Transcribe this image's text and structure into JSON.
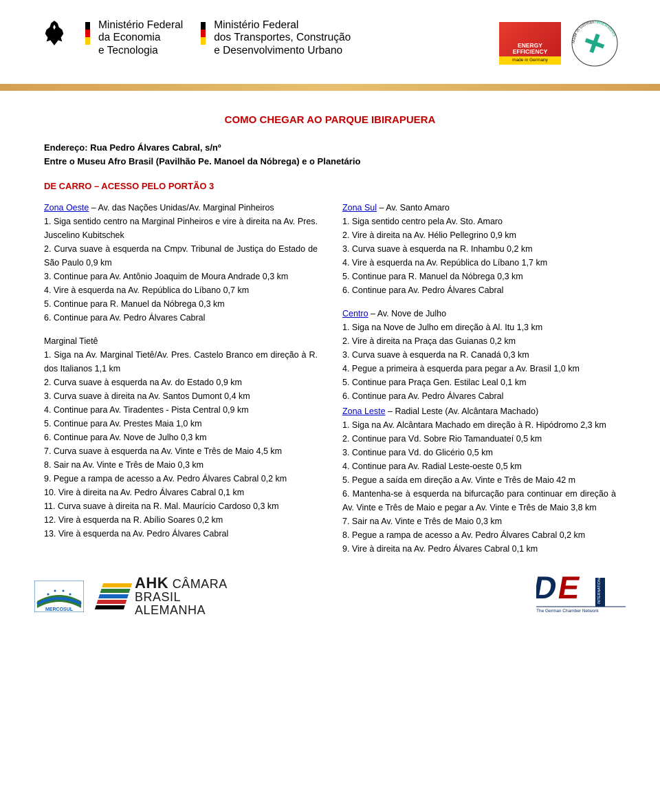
{
  "header": {
    "ministry1": {
      "line1": "Ministério Federal",
      "line2": "da Economia",
      "line3": "e Tecnologia"
    },
    "ministry2": {
      "line1": "Ministério Federal",
      "line2": "dos Transportes, Construção",
      "line3": "e Desenvolvimento Urbano"
    },
    "badge_ee": {
      "line1": "ENERGY",
      "line2": "EFFICIENCY",
      "sub": "made in Germany"
    },
    "badge_ren_top": "renewables",
    "badge_ren_bot": "Made in Germany"
  },
  "title": "COMO CHEGAR AO PARQUE IBIRAPUERA",
  "address": {
    "l1": "Endereço: Rua Pedro Álvares Cabral, s/nº",
    "l2": "Entre o Museu Afro Brasil (Pavilhão Pe. Manoel da Nóbrega) e o Planetário"
  },
  "section": "DE CARRO – ACESSO PELO PORTÃO 3",
  "colL": {
    "zone1_link": "Zona Oeste",
    "zone1_rest": " – Av. das Nações Unidas/Av. Marginal Pinheiros",
    "z1": [
      "1. Siga sentido centro na Marginal Pinheiros e vire à direita na Av. Pres. Juscelino Kubitschek",
      "2. Curva suave à esquerda na Cmpv. Tribunal de Justiça do Estado de São Paulo 0,9 km",
      "3. Continue para Av. Antônio Joaquim de Moura Andrade 0,3 km",
      "4. Vire à esquerda na Av. República do Líbano 0,7 km",
      "5. Continue para R. Manuel da Nóbrega 0,3 km",
      "6. Continue para Av. Pedro Álvares Cabral"
    ],
    "sub1_head": "Marginal Tietê",
    "sub1": [
      "1. Siga na Av. Marginal Tietê/Av. Pres. Castelo Branco em direção à R. dos Italianos 1,1 km",
      "2. Curva suave à esquerda na Av. do Estado 0,9 km",
      "3. Curva suave à direita na Av. Santos Dumont 0,4 km",
      "4. Continue para Av. Tiradentes - Pista Central 0,9 km",
      "5. Continue para Av. Prestes Maia 1,0 km",
      "6. Continue para Av. Nove de Julho 0,3 km",
      "7. Curva suave à esquerda na Av. Vinte e Três de Maio 4,5 km",
      "8. Sair na Av. Vinte e Três de Maio 0,3 km",
      "9. Pegue a rampa de acesso a Av. Pedro Álvares Cabral 0,2 km",
      "10. Vire à direita na Av. Pedro Álvares Cabral 0,1 km",
      "11. Curva suave à direita na R. Mal. Maurício Cardoso 0,3 km",
      "12. Vire à esquerda na R. Abílio Soares 0,2 km",
      "13. Vire à esquerda na Av. Pedro Álvares Cabral"
    ]
  },
  "colR": {
    "zone2_link": "Zona Sul",
    "zone2_rest": " – Av. Santo Amaro",
    "z2": [
      "1. Siga sentido centro pela Av. Sto. Amaro",
      "2. Vire à direita na Av. Hélio Pellegrino 0,9 km",
      "3. Curva suave à esquerda na R. Inhambu 0,2 km",
      "4. Vire à esquerda na Av. República do Líbano 1,7 km",
      "5. Continue para R. Manuel da Nóbrega 0,3 km",
      "6. Continue para Av. Pedro Álvares Cabral"
    ],
    "zone3_link": "Centro",
    "zone3_rest": " – Av. Nove de Julho",
    "z3": [
      "1. Siga na Nove de Julho em direção à Al. Itu 1,3 km",
      "2. Vire à direita na Praça das Guianas 0,2 km",
      "3. Curva suave à esquerda na R. Canadá 0,3 km",
      "4. Pegue a primeira à esquerda para pegar a Av. Brasil 1,0 km",
      "5. Continue para Praça Gen. Estilac Leal 0,1 km",
      "6. Continue para Av. Pedro Álvares Cabral"
    ],
    "zone4_link": "Zona Leste",
    "zone4_rest": " – Radial Leste (Av. Alcântara Machado)",
    "z4": [
      "1. Siga na Av. Alcântara Machado em direção à R. Hipódromo 2,3 km",
      "2. Continue para Vd. Sobre Rio Tamanduateí 0,5 km",
      "3. Continue para Vd. do Glicério 0,5 km",
      "4. Continue para Av. Radial Leste-oeste 0,5 km",
      "5. Pegue a saída em direção a Av. Vinte e Três de Maio 42 m",
      "6. Mantenha-se à esquerda na bifurcação para continuar em direção à Av. Vinte e Três de Maio e pegar a Av. Vinte e Três de Maio 3,8 km",
      "7. Sair na Av. Vinte e Três de Maio 0,3 km",
      "8. Pegue a rampa de acesso a Av. Pedro Álvares Cabral 0,2 km",
      "9. Vire à direita na Av. Pedro Álvares Cabral 0,1 km"
    ]
  },
  "footer": {
    "mercosul": "MERCOSUL",
    "ahk_l1": "CÂMARA",
    "ahk_l2": "BRASIL",
    "ahk_l3": "ALEMANHA",
    "ahk_big": "AHK",
    "de_sub": "The German Chamber Network",
    "de_intl": "INTERNATIONAL"
  },
  "colors": {
    "accent_red": "#c00000",
    "link_blue": "#0000cc",
    "stripe": "#d4a050",
    "ee_red": "#c41e1e",
    "ee_yellow": "#ffd400"
  }
}
